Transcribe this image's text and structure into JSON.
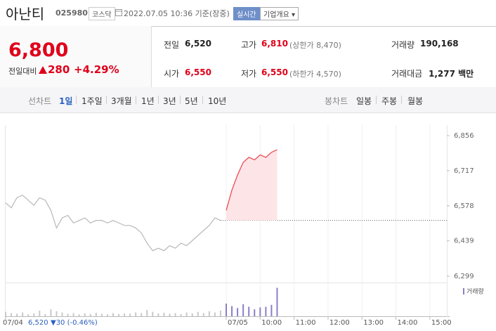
{
  "header": {
    "name": "아난티",
    "code": "025980",
    "market": "코스닥",
    "date": "2022.07.05 10:36 기준(장중)",
    "live": "실시간",
    "company_button": "기업개요 ▾"
  },
  "quote": {
    "price": "6,800",
    "change_label": "전일대비",
    "change": "280",
    "change_pct": "+4.29%"
  },
  "stats": {
    "prev_label": "전일",
    "prev": "6,520",
    "high_label": "고가",
    "high": "6,810",
    "upper_limit": "(상한가 8,470)",
    "volume_label": "거래량",
    "volume": "190,168",
    "open_label": "시가",
    "open": "6,550",
    "low_label": "저가",
    "low": "6,550",
    "lower_limit": "(하한가 4,570)",
    "amount_label": "거래대금",
    "amount": "1,277 백만"
  },
  "tabs": {
    "line_head": "선차트",
    "line": [
      "1일",
      "1주일",
      "3개월",
      "1년",
      "3년",
      "5년",
      "10년"
    ],
    "candle_head": "봉차트",
    "candle": [
      "일봉",
      "주봉",
      "월봉"
    ]
  },
  "chart_data": {
    "type": "line",
    "categories": [
      "07/04",
      null,
      null,
      null,
      null,
      null,
      null,
      null,
      null,
      null,
      null,
      null,
      null,
      null,
      null,
      null,
      null,
      null,
      null,
      null,
      null,
      null,
      null,
      null,
      null,
      null,
      null,
      null,
      null,
      null,
      null,
      null,
      null,
      null,
      null,
      null,
      null,
      null,
      null,
      "07/05",
      null,
      null,
      null,
      null,
      null,
      "10:00",
      null,
      null,
      null,
      null,
      null,
      "11:00",
      null,
      null,
      null,
      null,
      null,
      "12:00",
      null,
      null,
      null,
      null,
      null,
      "13:00",
      null,
      null,
      null,
      null,
      null,
      "14:00",
      null,
      null,
      null,
      null,
      null,
      "15:00",
      null,
      null,
      null
    ],
    "series": [
      {
        "color": "#b8b8b8",
        "values": [
          6590,
          6570,
          6610,
          6620,
          6600,
          6580,
          6610,
          6600,
          6560,
          6490,
          6530,
          6540,
          6510,
          6520,
          6530,
          6510,
          6520,
          6520,
          6510,
          6520,
          6510,
          6500,
          6500,
          6490,
          6470,
          6430,
          6400,
          6410,
          6400,
          6420,
          6410,
          6430,
          6420,
          6440,
          6460,
          6480,
          6500,
          6530,
          6520,
          null,
          null,
          null,
          null,
          null,
          null,
          null,
          null,
          null,
          null,
          null,
          null,
          null,
          null,
          null,
          null,
          null,
          null,
          null,
          null,
          null,
          null,
          null,
          null,
          null,
          null,
          null,
          null,
          null,
          null,
          null,
          null,
          null,
          null,
          null,
          null,
          null,
          null,
          null,
          null
        ]
      },
      {
        "color": "#e8424b",
        "fill": "#fde4e7",
        "values": [
          null,
          null,
          null,
          null,
          null,
          null,
          null,
          null,
          null,
          null,
          null,
          null,
          null,
          null,
          null,
          null,
          null,
          null,
          null,
          null,
          null,
          null,
          null,
          null,
          null,
          null,
          null,
          null,
          null,
          null,
          null,
          null,
          null,
          null,
          null,
          null,
          null,
          null,
          null,
          6560,
          6640,
          6700,
          6750,
          6770,
          6760,
          6780,
          6770,
          6790,
          6800,
          null,
          null,
          null,
          null,
          null,
          null,
          null,
          null,
          null,
          null,
          null,
          null,
          null,
          null,
          null,
          null,
          null,
          null,
          null,
          null,
          null,
          null,
          null,
          null,
          null,
          null,
          null,
          null,
          null,
          null
        ]
      }
    ],
    "reference_line": 6520,
    "ylim": [
      6299,
      6856
    ],
    "yticks": [
      {
        "value": 6856,
        "label": "6,856"
      },
      {
        "value": 6717,
        "label": "6,717"
      },
      {
        "value": 6578,
        "label": "6,578"
      },
      {
        "value": 6439,
        "label": "6,439"
      },
      {
        "value": 6299,
        "label": "6,299"
      }
    ],
    "grid": false,
    "volume": {
      "name": "거래량",
      "color": "#8b7fc7",
      "ylim": [
        0,
        100
      ],
      "values": [
        14,
        10,
        8,
        12,
        6,
        9,
        18,
        7,
        22,
        16,
        12,
        8,
        10,
        6,
        9,
        7,
        11,
        8,
        6,
        10,
        7,
        9,
        8,
        12,
        10,
        20,
        14,
        9,
        11,
        8,
        10,
        7,
        12,
        9,
        14,
        10,
        16,
        12,
        18,
        40,
        32,
        26,
        38,
        30,
        22,
        28,
        30,
        36,
        90,
        null,
        null,
        null,
        null,
        null,
        null,
        null,
        null,
        null,
        null,
        null,
        null,
        null,
        null,
        null,
        null,
        null,
        null,
        null,
        null,
        null,
        null,
        null,
        null,
        null,
        null,
        null,
        null,
        null,
        null
      ]
    },
    "legend": {
      "price": "6,520",
      "change": "▼30 (-0.46%)"
    }
  }
}
